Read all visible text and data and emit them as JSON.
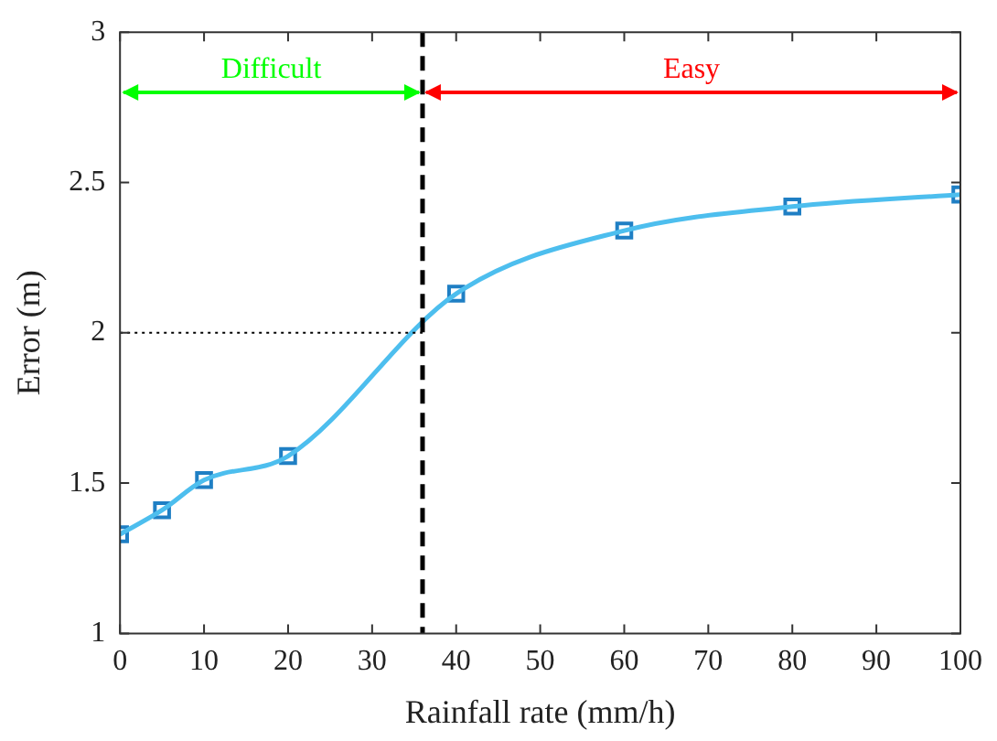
{
  "chart_data": {
    "type": "line",
    "xlabel": "Rainfall rate (mm/h)",
    "ylabel": "Error (m)",
    "x": [
      0,
      5,
      10,
      20,
      40,
      60,
      80,
      100
    ],
    "series": [
      {
        "type": "line",
        "color": "#4dbeee",
        "marker": "none",
        "values": [
          1.33,
          1.41,
          1.51,
          1.59,
          2.13,
          2.34,
          2.42,
          2.46
        ]
      },
      {
        "type": "scatter",
        "color": "#1f7fc4",
        "marker": "square",
        "values": [
          1.33,
          1.41,
          1.51,
          1.59,
          2.13,
          2.34,
          2.42,
          2.46
        ]
      }
    ],
    "xlim": [
      0,
      100
    ],
    "xticks": [
      0,
      10,
      20,
      30,
      40,
      50,
      60,
      70,
      80,
      90,
      100
    ],
    "ylim": [
      1,
      3
    ],
    "yticks": [
      1,
      1.5,
      2,
      2.5,
      3
    ],
    "ref_lines": [
      {
        "axis": "x",
        "value": 36,
        "color": "#000000",
        "line_style": "dashed"
      },
      {
        "axis": "y",
        "value": 2,
        "color": "#000000",
        "line_style": "dotted"
      }
    ],
    "annotations": [
      "Difficult",
      "Easy"
    ],
    "legend": false
  }
}
